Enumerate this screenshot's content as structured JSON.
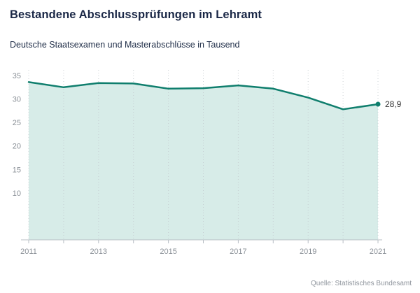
{
  "header": {
    "title": "Bestandene Abschlussprüfungen im Lehramt",
    "subtitle": "Deutsche Staatsexamen und Masterabschlüsse in Tausend"
  },
  "source": "Quelle: Statistisches Bundesamt",
  "chart_data": {
    "type": "area",
    "title": "Bestandene Abschlussprüfungen im Lehramt",
    "subtitle": "Deutsche Staatsexamen und Masterabschlüsse in Tausend",
    "x": [
      2011,
      2012,
      2013,
      2014,
      2015,
      2016,
      2017,
      2018,
      2019,
      2020,
      2021
    ],
    "values": [
      33.6,
      32.5,
      33.4,
      33.3,
      32.2,
      32.3,
      32.9,
      32.2,
      30.3,
      27.8,
      28.9
    ],
    "last_point_label": "28,9",
    "yticks": [
      10,
      15,
      20,
      25,
      30,
      35
    ],
    "xticks_labeled": [
      2011,
      2013,
      2015,
      2017,
      2019,
      2021
    ],
    "ylim": [
      0,
      35
    ],
    "grid": "vertical-dotted",
    "legend": "none",
    "colors": {
      "line": "#0f7e6d",
      "fill": "#d7ece8",
      "marker": "#0f7e6d",
      "axis_label": "#8a9097",
      "axis_line": "#b9bfc6",
      "gridline": "#c3c9ce",
      "annotation": "#333333"
    }
  }
}
